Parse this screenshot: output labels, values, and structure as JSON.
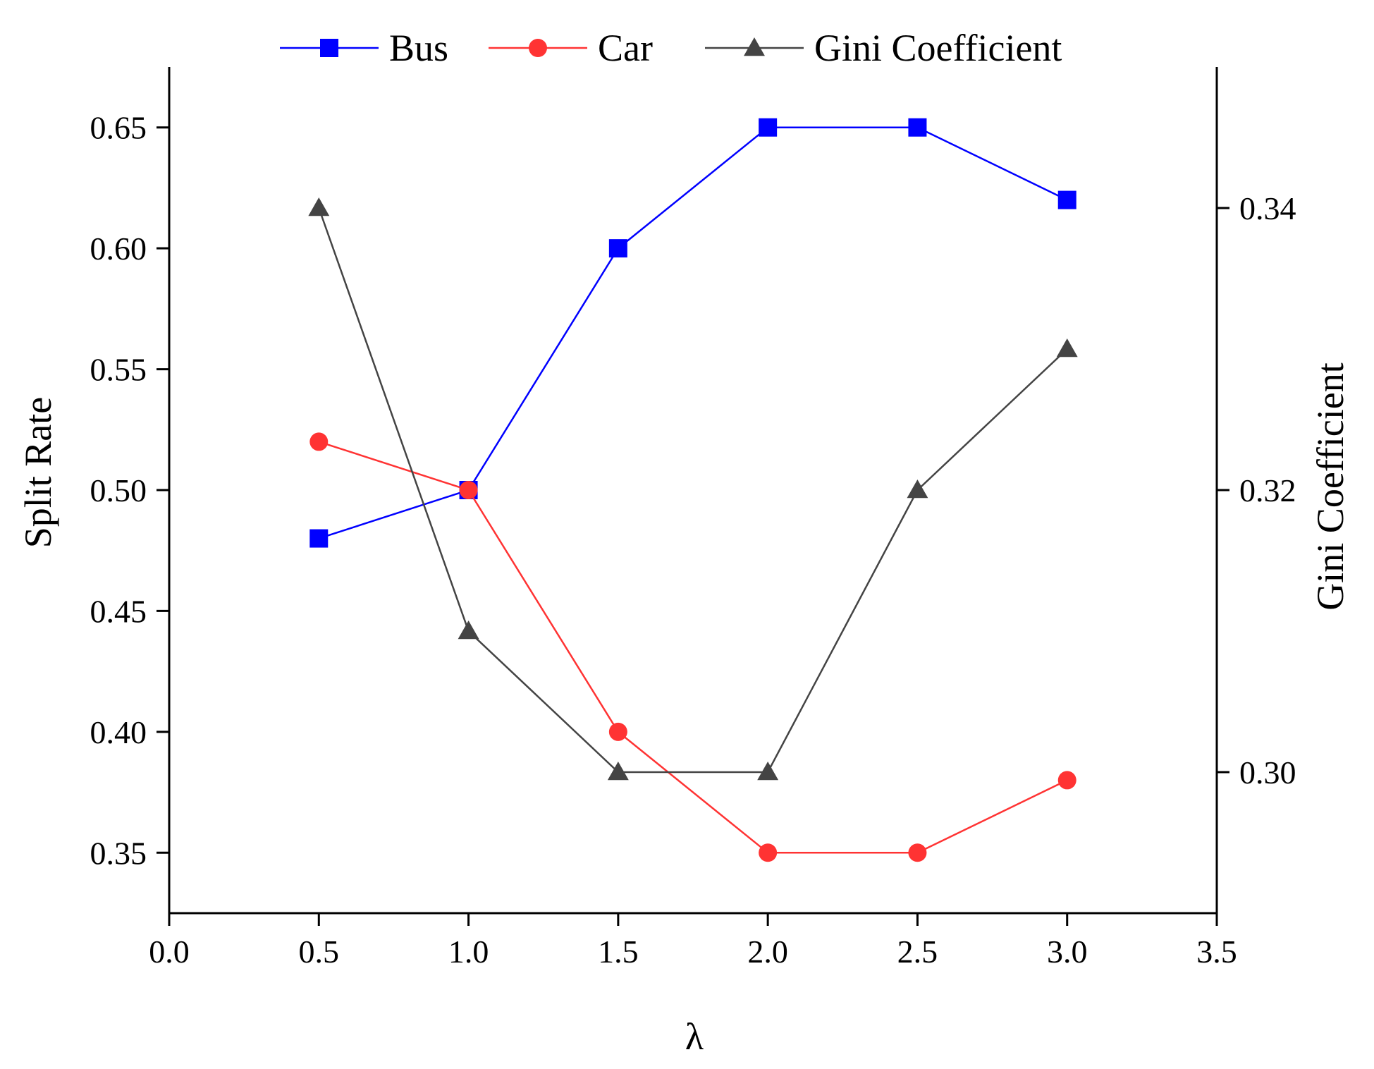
{
  "chart_data": {
    "type": "line",
    "xlabel": "λ",
    "ylabel": "Split Rate",
    "y2label": "Gini Coefficient",
    "xlim": [
      0,
      3.5
    ],
    "ylim": [
      0.325,
      0.675
    ],
    "y2lim": [
      0.29,
      0.35
    ],
    "xticks": [
      "0.0",
      "0.5",
      "1.0",
      "1.5",
      "2.0",
      "2.5",
      "3.0",
      "3.5"
    ],
    "yticks": [
      "0.35",
      "0.40",
      "0.45",
      "0.50",
      "0.55",
      "0.60",
      "0.65"
    ],
    "y2ticks": [
      "0.30",
      "0.32",
      "0.34"
    ],
    "legend_position": "top",
    "x": [
      0.5,
      1.0,
      1.5,
      2.0,
      2.5,
      3.0
    ],
    "series": [
      {
        "name": "Bus",
        "axis": "left",
        "marker": "square",
        "color": "#0000ff",
        "values": [
          0.48,
          0.5,
          0.6,
          0.65,
          0.65,
          0.62
        ]
      },
      {
        "name": "Car",
        "axis": "left",
        "marker": "circle",
        "color": "#ff3333",
        "values": [
          0.52,
          0.5,
          0.4,
          0.35,
          0.35,
          0.38
        ]
      },
      {
        "name": "Gini Coefficient",
        "axis": "right",
        "marker": "triangle",
        "color": "#444444",
        "values": [
          0.34,
          0.31,
          0.3,
          0.3,
          0.32,
          0.33
        ]
      }
    ]
  }
}
